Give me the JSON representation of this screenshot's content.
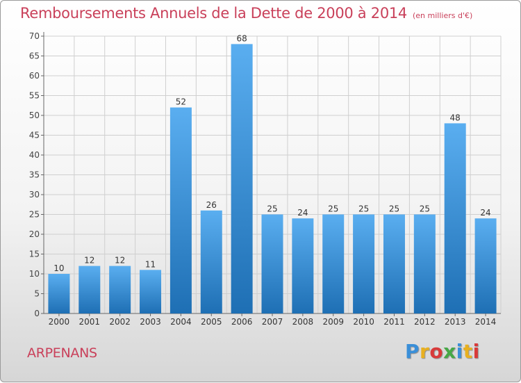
{
  "title": "Remboursements Annuels de la Dette de 2000 à 2014",
  "unit": "(en milliers d'€)",
  "place": "ARPENANS",
  "logo": "Proxiti",
  "logo_colors": [
    "#3a8fd8",
    "#e8b020",
    "#d83a3a",
    "#46a846",
    "#3a8fd8",
    "#e8b020",
    "#d83a3a"
  ],
  "colors": {
    "title": "#c9405a",
    "bar_top": "#5aaef0",
    "bar_bottom": "#1e6fb4",
    "grid": "#cfcfcf"
  },
  "chart_data": {
    "type": "bar",
    "categories": [
      "2000",
      "2001",
      "2002",
      "2003",
      "2004",
      "2005",
      "2006",
      "2007",
      "2008",
      "2009",
      "2010",
      "2011",
      "2012",
      "2013",
      "2014"
    ],
    "values": [
      10,
      12,
      12,
      11,
      52,
      26,
      68,
      25,
      24,
      25,
      25,
      25,
      25,
      48,
      24
    ],
    "ylim": [
      0,
      70
    ],
    "yticks": [
      0,
      5,
      10,
      15,
      20,
      25,
      30,
      35,
      40,
      45,
      50,
      55,
      60,
      65,
      70
    ],
    "grid": true,
    "data_labels": true
  }
}
